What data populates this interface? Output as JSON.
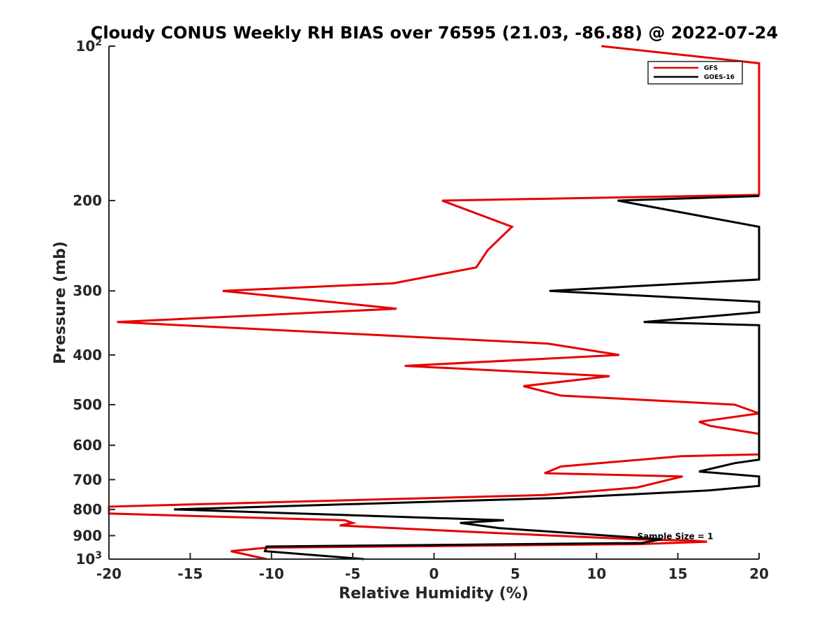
{
  "chart_data": {
    "type": "line",
    "title": "Cloudy CONUS Weekly RH BIAS over 76595 (21.03, -86.88) @ 2022-07-24",
    "xlabel": "Relative Humidity (%)",
    "ylabel": "Pressure (mb)",
    "xlim": [
      -20,
      20
    ],
    "ylim": [
      100,
      1000
    ],
    "yscale": "log",
    "ydirection": "reverse",
    "grid": false,
    "legend_position": "top-right",
    "x_ticks": [
      -20,
      -15,
      -10,
      -5,
      0,
      5,
      10,
      15,
      20
    ],
    "x_tick_labels": [
      "-20",
      "-15",
      "-10",
      "-5",
      "0",
      "5",
      "10",
      "15",
      "20"
    ],
    "y_ticks": [
      {
        "value": 100,
        "base": "10",
        "exp": "2"
      },
      {
        "value": 200,
        "label": "200"
      },
      {
        "value": 300,
        "label": "300"
      },
      {
        "value": 400,
        "label": "400"
      },
      {
        "value": 500,
        "label": "500"
      },
      {
        "value": 600,
        "label": "600"
      },
      {
        "value": 700,
        "label": "700"
      },
      {
        "value": 800,
        "label": "800"
      },
      {
        "value": 900,
        "label": "900"
      },
      {
        "value": 1000,
        "base": "10",
        "exp": "3"
      }
    ],
    "annotation": "Sample Size = 1",
    "annotation_at": {
      "x": 12.5,
      "p": 900
    },
    "series": [
      {
        "name": "GFS",
        "color": "#e60000",
        "points": [
          [
            10.3,
            100
          ],
          [
            20,
            108
          ],
          [
            20,
            195
          ],
          [
            0.5,
            200
          ],
          [
            4.8,
            225
          ],
          [
            3.3,
            250
          ],
          [
            2.6,
            270
          ],
          [
            -2.5,
            290
          ],
          [
            -13,
            300
          ],
          [
            -2.3,
            325
          ],
          [
            -19.5,
            345
          ],
          [
            7,
            380
          ],
          [
            11.4,
            400
          ],
          [
            -1.8,
            420
          ],
          [
            10.8,
            440
          ],
          [
            5.5,
            460
          ],
          [
            7.8,
            480
          ],
          [
            18.5,
            500
          ],
          [
            20,
            520
          ],
          [
            16.3,
            540
          ],
          [
            17,
            550
          ],
          [
            20,
            570
          ],
          [
            20,
            625
          ],
          [
            15.2,
            630
          ],
          [
            7.8,
            660
          ],
          [
            6.8,
            680
          ],
          [
            15.3,
            690
          ],
          [
            12.5,
            725
          ],
          [
            6.8,
            750
          ],
          [
            -20,
            790
          ],
          [
            -20,
            815
          ],
          [
            -5.5,
            840
          ],
          [
            -5,
            850
          ],
          [
            -5.8,
            860
          ],
          [
            4,
            890
          ],
          [
            12.5,
            915
          ],
          [
            15.8,
            920
          ],
          [
            16.8,
            925
          ],
          [
            12.5,
            935
          ],
          [
            -10.3,
            950
          ],
          [
            -12.5,
            965
          ],
          [
            -10.3,
            1000
          ]
        ]
      },
      {
        "name": "GOES-16",
        "color": "#000000",
        "points": [
          [
            20,
            196
          ],
          [
            11.3,
            200
          ],
          [
            20,
            225
          ],
          [
            20,
            285
          ],
          [
            7.1,
            300
          ],
          [
            20,
            315
          ],
          [
            20,
            330
          ],
          [
            12.9,
            345
          ],
          [
            20,
            350
          ],
          [
            20,
            640
          ],
          [
            18.5,
            650
          ],
          [
            16.3,
            675
          ],
          [
            20,
            690
          ],
          [
            20,
            720
          ],
          [
            16.8,
            735
          ],
          [
            7.7,
            760
          ],
          [
            -16,
            800
          ],
          [
            4.3,
            840
          ],
          [
            1.6,
            850
          ],
          [
            4,
            870
          ],
          [
            14,
            915
          ],
          [
            12.8,
            930
          ],
          [
            -10.3,
            945
          ],
          [
            -10.4,
            965
          ],
          [
            -4.3,
            1000
          ]
        ]
      }
    ]
  }
}
